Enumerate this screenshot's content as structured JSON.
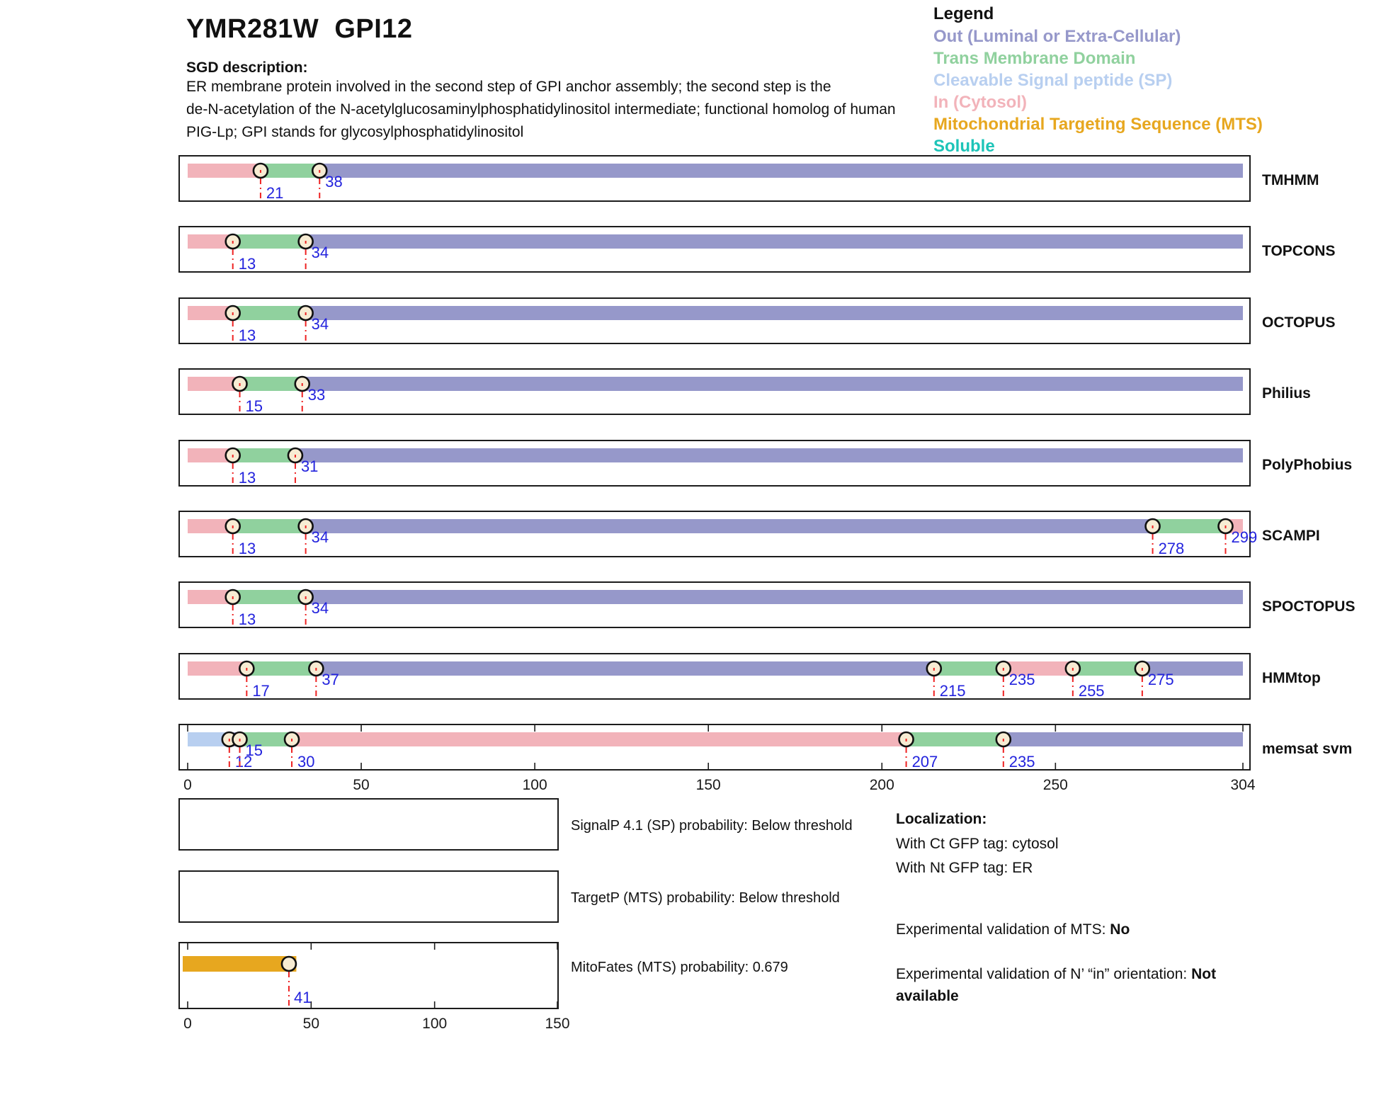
{
  "header": {
    "title": "YMR281W  GPI12",
    "sgd_label": "SGD description:",
    "description_lines": [
      "ER membrane protein involved in the second step of GPI anchor assembly; the second step is the",
      "de-N-acetylation of the N-acetylglucosaminylphosphatidylinositol intermediate; functional homolog of human",
      "PIG-Lp; GPI stands for glycosylphosphatidylinositol"
    ]
  },
  "legend": {
    "title": "Legend",
    "items": [
      {
        "label": "Out (Luminal or Extra-Cellular)",
        "color": "out"
      },
      {
        "label": "Trans Membrane Domain",
        "color": "tm"
      },
      {
        "label": "Cleavable Signal peptide (SP)",
        "color": "sp"
      },
      {
        "label": "In (Cytosol)",
        "color": "in"
      },
      {
        "label": "Mitochondrial Targeting Sequence (MTS)",
        "color": "mts"
      },
      {
        "label": "Soluble",
        "color": "soluble"
      }
    ]
  },
  "colors": {
    "out": "#9698ca",
    "tm": "#90d19e",
    "sp": "#b8cff0",
    "in": "#f2b3ba",
    "mts": "#e7a71f",
    "soluble": "#1dc4b8",
    "marker_fill": "#f7ecd3",
    "marker_stroke": "#111111",
    "marker_line": "#ee2222",
    "value_label": "#2323dd",
    "box_stroke": "#1c1c1c",
    "axis_label": "#1a1a1a"
  },
  "chart_data": {
    "type": "protein-topology-tracks",
    "sequence_length": 304,
    "axis_ticks": [
      0,
      50,
      100,
      150,
      200,
      250,
      304
    ],
    "tracks": [
      {
        "name": "TMHMM",
        "segments": [
          {
            "start": 0,
            "end": 21,
            "type": "in"
          },
          {
            "start": 21,
            "end": 38,
            "type": "tm"
          },
          {
            "start": 38,
            "end": 304,
            "type": "out"
          }
        ],
        "markers": [
          {
            "pos": 21,
            "level": "low"
          },
          {
            "pos": 38,
            "level": "high"
          }
        ]
      },
      {
        "name": "TOPCONS",
        "segments": [
          {
            "start": 0,
            "end": 13,
            "type": "in"
          },
          {
            "start": 13,
            "end": 34,
            "type": "tm"
          },
          {
            "start": 34,
            "end": 304,
            "type": "out"
          }
        ],
        "markers": [
          {
            "pos": 13,
            "level": "low"
          },
          {
            "pos": 34,
            "level": "high"
          }
        ]
      },
      {
        "name": "OCTOPUS",
        "segments": [
          {
            "start": 0,
            "end": 13,
            "type": "in"
          },
          {
            "start": 13,
            "end": 34,
            "type": "tm"
          },
          {
            "start": 34,
            "end": 304,
            "type": "out"
          }
        ],
        "markers": [
          {
            "pos": 13,
            "level": "low"
          },
          {
            "pos": 34,
            "level": "high"
          }
        ]
      },
      {
        "name": "Philius",
        "segments": [
          {
            "start": 0,
            "end": 15,
            "type": "in"
          },
          {
            "start": 15,
            "end": 33,
            "type": "tm"
          },
          {
            "start": 33,
            "end": 304,
            "type": "out"
          }
        ],
        "markers": [
          {
            "pos": 15,
            "level": "low"
          },
          {
            "pos": 33,
            "level": "high"
          }
        ]
      },
      {
        "name": "PolyPhobius",
        "segments": [
          {
            "start": 0,
            "end": 13,
            "type": "in"
          },
          {
            "start": 13,
            "end": 31,
            "type": "tm"
          },
          {
            "start": 31,
            "end": 304,
            "type": "out"
          }
        ],
        "markers": [
          {
            "pos": 13,
            "level": "low"
          },
          {
            "pos": 31,
            "level": "high"
          }
        ]
      },
      {
        "name": "SCAMPI",
        "segments": [
          {
            "start": 0,
            "end": 13,
            "type": "in"
          },
          {
            "start": 13,
            "end": 34,
            "type": "tm"
          },
          {
            "start": 34,
            "end": 278,
            "type": "out"
          },
          {
            "start": 278,
            "end": 299,
            "type": "tm"
          },
          {
            "start": 299,
            "end": 304,
            "type": "in"
          }
        ],
        "markers": [
          {
            "pos": 13,
            "level": "low"
          },
          {
            "pos": 34,
            "level": "high"
          },
          {
            "pos": 278,
            "level": "low"
          },
          {
            "pos": 299,
            "level": "high"
          }
        ]
      },
      {
        "name": "SPOCTOPUS",
        "segments": [
          {
            "start": 0,
            "end": 13,
            "type": "in"
          },
          {
            "start": 13,
            "end": 34,
            "type": "tm"
          },
          {
            "start": 34,
            "end": 304,
            "type": "out"
          }
        ],
        "markers": [
          {
            "pos": 13,
            "level": "low"
          },
          {
            "pos": 34,
            "level": "high"
          }
        ]
      },
      {
        "name": "HMMtop",
        "segments": [
          {
            "start": 0,
            "end": 17,
            "type": "in"
          },
          {
            "start": 17,
            "end": 37,
            "type": "tm"
          },
          {
            "start": 37,
            "end": 215,
            "type": "out"
          },
          {
            "start": 215,
            "end": 235,
            "type": "tm"
          },
          {
            "start": 235,
            "end": 255,
            "type": "in"
          },
          {
            "start": 255,
            "end": 275,
            "type": "tm"
          },
          {
            "start": 275,
            "end": 304,
            "type": "out"
          }
        ],
        "markers": [
          {
            "pos": 17,
            "level": "low"
          },
          {
            "pos": 37,
            "level": "high"
          },
          {
            "pos": 215,
            "level": "low"
          },
          {
            "pos": 235,
            "level": "high"
          },
          {
            "pos": 255,
            "level": "low"
          },
          {
            "pos": 275,
            "level": "high"
          }
        ]
      },
      {
        "name": "memsat svm",
        "has_ticks": true,
        "segments": [
          {
            "start": 0,
            "end": 12,
            "type": "sp"
          },
          {
            "start": 12,
            "end": 15,
            "type": "out"
          },
          {
            "start": 15,
            "end": 30,
            "type": "tm"
          },
          {
            "start": 30,
            "end": 207,
            "type": "in"
          },
          {
            "start": 207,
            "end": 235,
            "type": "tm"
          },
          {
            "start": 235,
            "end": 304,
            "type": "out"
          }
        ],
        "markers": [
          {
            "pos": 12,
            "level": "low"
          },
          {
            "pos": 15,
            "level": "high"
          },
          {
            "pos": 30,
            "level": "low"
          },
          {
            "pos": 207,
            "level": "low"
          },
          {
            "pos": 235,
            "level": "low"
          }
        ]
      }
    ],
    "panels": [
      {
        "name": "SignalP",
        "bar": null,
        "markers": []
      },
      {
        "name": "TargetP",
        "bar": null,
        "markers": []
      },
      {
        "name": "MitoFates",
        "bar": {
          "start": 0,
          "end": 44,
          "type": "mts"
        },
        "markers": [
          {
            "pos": 41,
            "level": "low"
          }
        ],
        "axis_ticks": [
          0,
          50,
          100,
          150
        ],
        "axis_max": 150
      }
    ]
  },
  "probability_labels": {
    "signalp": "SignalP 4.1 (SP) probability: Below threshold",
    "targetp": "TargetP (MTS) probability: Below threshold",
    "mitofates": "MitoFates (MTS) probability: 0.679"
  },
  "localization": {
    "title": "Localization:",
    "ct": "With Ct GFP tag: cytosol",
    "nt": "With Nt GFP tag: ER",
    "mts_label": "Experimental validation of MTS: ",
    "mts_value": "No",
    "orientation_label": "Experimental validation of N’ “in” orientation: ",
    "orientation_value": "Not available"
  }
}
